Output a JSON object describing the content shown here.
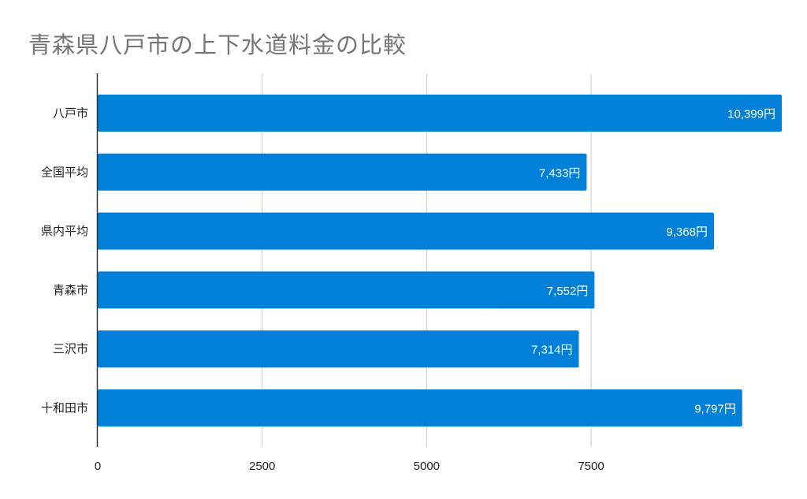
{
  "chart_data": {
    "type": "bar",
    "orientation": "horizontal",
    "title": "青森県八戸市の上下水道料金の比較",
    "categories": [
      "八戸市",
      "全国平均",
      "県内平均",
      "青森市",
      "三沢市",
      "十和田市"
    ],
    "values": [
      10399,
      7433,
      9368,
      7552,
      7314,
      9797
    ],
    "data_labels": [
      "10,399円",
      "7,433円",
      "9,368円",
      "7,552円",
      "7,314円",
      "9,797円"
    ],
    "xlim": [
      0,
      10399
    ],
    "x_ticks": [
      "0",
      "2500",
      "5000",
      "7500"
    ],
    "x_tick_values": [
      0,
      2500,
      5000,
      7500
    ],
    "grid": true,
    "legend": "none",
    "colors": {
      "bar": "#0080D8",
      "title": "#757575",
      "grid": "#cccccc",
      "axis": "#333333"
    }
  }
}
